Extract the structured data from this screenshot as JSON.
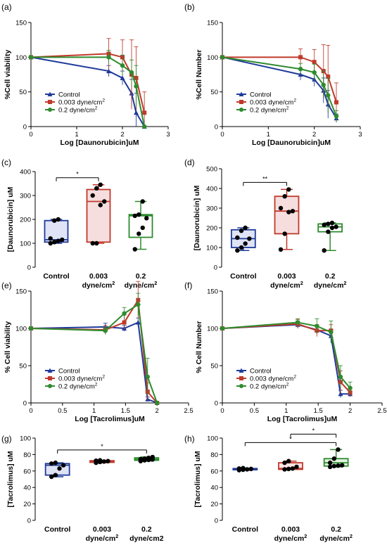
{
  "chart_data": [
    {
      "panel": "(a)",
      "type": "line",
      "xlabel": "Log [Daunorubicin]uM",
      "ylabel": "%Cell viability",
      "xlim": [
        0,
        3
      ],
      "ylim": [
        0,
        150
      ],
      "xticks": [
        0,
        1,
        2,
        3
      ],
      "yticks": [
        0,
        50,
        100,
        150
      ],
      "legend": "bottom-left",
      "series": [
        {
          "name": "Control",
          "color": "#1f3a9a",
          "marker": "triangle",
          "x": [
            0,
            1.7,
            2.0,
            2.2,
            2.3,
            2.48
          ],
          "y": [
            100,
            80,
            70,
            48,
            20,
            0
          ],
          "err": [
            0,
            8,
            10,
            20,
            28,
            0
          ]
        },
        {
          "name": "0.003 dyne/cm²",
          "color": "#c0392b",
          "marker": "square",
          "x": [
            0,
            1.7,
            2.0,
            2.2,
            2.3,
            2.48
          ],
          "y": [
            100,
            105,
            100,
            75,
            70,
            20
          ],
          "err": [
            0,
            22,
            25,
            50,
            45,
            30
          ]
        },
        {
          "name": "0.2 dyne/cm²",
          "color": "#2e8b2e",
          "marker": "circle",
          "x": [
            0,
            1.7,
            2.0,
            2.2,
            2.3,
            2.48
          ],
          "y": [
            100,
            100,
            88,
            78,
            58,
            0
          ],
          "err": [
            0,
            10,
            15,
            18,
            30,
            0
          ]
        }
      ]
    },
    {
      "panel": "(b)",
      "type": "line",
      "xlabel": "Log [Daunorubicin]uM",
      "ylabel": "%Cell Number",
      "xlim": [
        0,
        3
      ],
      "ylim": [
        0,
        150
      ],
      "xticks": [
        0,
        1,
        2,
        3
      ],
      "yticks": [
        0,
        50,
        100,
        150
      ],
      "legend": "bottom-left",
      "series": [
        {
          "name": "Control",
          "color": "#1f3a9a",
          "marker": "triangle",
          "x": [
            0,
            1.7,
            2.0,
            2.2,
            2.3,
            2.48
          ],
          "y": [
            100,
            75,
            68,
            52,
            32,
            12
          ],
          "err": [
            0,
            8,
            10,
            18,
            20,
            6
          ]
        },
        {
          "name": "0.003 dyne/cm²",
          "color": "#c0392b",
          "marker": "square",
          "x": [
            0,
            1.7,
            2.0,
            2.2,
            2.3,
            2.48
          ],
          "y": [
            100,
            100,
            93,
            80,
            72,
            35
          ],
          "err": [
            0,
            12,
            18,
            38,
            45,
            28
          ]
        },
        {
          "name": "0.2 dyne/cm²",
          "color": "#2e8b2e",
          "marker": "circle",
          "x": [
            0,
            1.7,
            2.0,
            2.2,
            2.3,
            2.48
          ],
          "y": [
            100,
            83,
            78,
            60,
            45,
            15
          ],
          "err": [
            0,
            8,
            12,
            20,
            25,
            8
          ]
        }
      ]
    },
    {
      "panel": "(c)",
      "type": "box",
      "ylabel": "[Daunorubicin] uM",
      "ylim": [
        0,
        400
      ],
      "yticks": [
        0,
        100,
        200,
        300,
        400
      ],
      "categories": [
        [
          "Control"
        ],
        [
          "0.003",
          "dyne/cm²"
        ],
        [
          "0.2",
          "dyne/cm²"
        ]
      ],
      "significance": [
        {
          "from": 0,
          "to": 1,
          "label": "*"
        }
      ],
      "boxes": [
        {
          "color": "#1f3a9a",
          "fill": "#dfe3f5",
          "min": 100,
          "q1": 105,
          "median": 115,
          "q3": 195,
          "max": 200,
          "points": [
            100,
            105,
            110,
            115,
            120,
            195,
            200
          ]
        },
        {
          "color": "#c0392b",
          "fill": "#f6dede",
          "min": 100,
          "q1": 105,
          "median": 275,
          "q3": 325,
          "max": 345,
          "points": [
            100,
            100,
            260,
            275,
            300,
            330,
            345
          ]
        },
        {
          "color": "#2e8b2e",
          "fill": "#ffffff",
          "min": 75,
          "q1": 125,
          "median": 215,
          "q3": 220,
          "max": 275,
          "points": [
            75,
            140,
            165,
            205,
            215,
            220,
            275
          ]
        }
      ]
    },
    {
      "panel": "(d)",
      "type": "box",
      "ylabel": "[Daunorubicin] uM",
      "ylim": [
        0,
        500
      ],
      "yticks": [
        0,
        100,
        200,
        300,
        400,
        500
      ],
      "categories": [
        [
          "Control"
        ],
        [
          "0.003",
          "dyne/cm²"
        ],
        [
          "0.2",
          "dyne/cm²"
        ]
      ],
      "significance": [
        {
          "from": 0,
          "to": 1,
          "label": "**"
        }
      ],
      "boxes": [
        {
          "color": "#1f3a9a",
          "fill": "#dfe3f5",
          "min": 85,
          "q1": 100,
          "median": 145,
          "q3": 190,
          "max": 200,
          "points": [
            85,
            100,
            120,
            145,
            150,
            185,
            200
          ]
        },
        {
          "color": "#c0392b",
          "fill": "#f6dede",
          "min": 90,
          "q1": 170,
          "median": 285,
          "q3": 360,
          "max": 395,
          "points": [
            90,
            170,
            280,
            285,
            300,
            360,
            395
          ]
        },
        {
          "color": "#2e8b2e",
          "fill": "#ffffff",
          "min": 85,
          "q1": 180,
          "median": 205,
          "q3": 220,
          "max": 225,
          "points": [
            85,
            180,
            200,
            205,
            215,
            220,
            225
          ]
        }
      ]
    },
    {
      "panel": "(e)",
      "type": "line",
      "xlabel": "Log [Tacrolimus]uM",
      "ylabel": "% Cell viability",
      "xlim": [
        0,
        2.5
      ],
      "ylim": [
        0,
        150
      ],
      "xticks": [
        0,
        0.5,
        1,
        1.5,
        2,
        2.5
      ],
      "yticks": [
        0,
        50,
        100,
        150
      ],
      "legend": "bottom-left",
      "series": [
        {
          "name": "Control",
          "color": "#1f3a9a",
          "marker": "triangle",
          "x": [
            0,
            1.18,
            1.48,
            1.7,
            1.85,
            2.0
          ],
          "y": [
            100,
            102,
            100,
            108,
            5,
            0
          ],
          "err": [
            0,
            5,
            4,
            6,
            3,
            0
          ]
        },
        {
          "name": "0.003 dyne/cm²",
          "color": "#c0392b",
          "marker": "square",
          "x": [
            0,
            1.18,
            1.48,
            1.7,
            1.85,
            2.0
          ],
          "y": [
            100,
            98,
            108,
            138,
            15,
            0
          ],
          "err": [
            0,
            6,
            10,
            25,
            12,
            0
          ]
        },
        {
          "name": "0.2 dyne/cm²",
          "color": "#2e8b2e",
          "marker": "circle",
          "x": [
            0,
            1.18,
            1.48,
            1.7,
            1.85,
            2.0
          ],
          "y": [
            100,
            97,
            120,
            132,
            35,
            0
          ],
          "err": [
            0,
            5,
            8,
            15,
            25,
            0
          ]
        }
      ]
    },
    {
      "panel": "(f)",
      "type": "line",
      "xlabel": "Log [Tacrolimus]uM",
      "ylabel": "% Cell Number",
      "xlim": [
        0,
        2.5
      ],
      "ylim": [
        0,
        150
      ],
      "xticks": [
        0,
        0.5,
        1,
        1.5,
        2,
        2.5
      ],
      "yticks": [
        0,
        50,
        100,
        150
      ],
      "legend": "bottom-left",
      "series": [
        {
          "name": "Control",
          "color": "#1f3a9a",
          "marker": "triangle",
          "x": [
            0,
            1.18,
            1.48,
            1.7,
            1.85,
            2.0
          ],
          "y": [
            100,
            105,
            98,
            90,
            12,
            12
          ],
          "err": [
            0,
            5,
            6,
            8,
            5,
            4
          ]
        },
        {
          "name": "0.003 dyne/cm²",
          "color": "#c0392b",
          "marker": "square",
          "x": [
            0,
            1.18,
            1.48,
            1.7,
            1.85,
            2.0
          ],
          "y": [
            100,
            106,
            97,
            97,
            28,
            14
          ],
          "err": [
            0,
            6,
            8,
            8,
            15,
            6
          ]
        },
        {
          "name": "0.2 dyne/cm²",
          "color": "#2e8b2e",
          "marker": "circle",
          "x": [
            0,
            1.18,
            1.48,
            1.7,
            1.85,
            2.0
          ],
          "y": [
            100,
            108,
            103,
            95,
            35,
            20
          ],
          "err": [
            0,
            5,
            10,
            15,
            15,
            8
          ]
        }
      ]
    },
    {
      "panel": "(g)",
      "type": "box",
      "ylabel": "[Tacrolimus] uM",
      "ylim": [
        0,
        100
      ],
      "yticks": [
        0,
        20,
        40,
        60,
        80,
        100
      ],
      "categories": [
        [
          "Control"
        ],
        [
          "0.003",
          "dyne/cm²"
        ],
        [
          "0.2",
          "dyne/cm2"
        ]
      ],
      "significance": [
        {
          "from": 0,
          "to": 2,
          "label": "*"
        }
      ],
      "boxes": [
        {
          "color": "#1f3a9a",
          "fill": "#dfe3f5",
          "min": 53,
          "q1": 55,
          "median": 67,
          "q3": 69,
          "max": 70,
          "points": [
            53,
            55,
            63,
            67,
            69,
            70
          ]
        },
        {
          "color": "#c0392b",
          "fill": "#f26b5b",
          "min": 70,
          "q1": 70.5,
          "median": 71.5,
          "q3": 72.5,
          "max": 73,
          "points": [
            70,
            71,
            71.5,
            72,
            72.5,
            73
          ]
        },
        {
          "color": "#2e8b2e",
          "fill": "#4ccc5a",
          "min": 72,
          "q1": 73,
          "median": 74,
          "q3": 76,
          "max": 77,
          "points": [
            72,
            73,
            73.5,
            74,
            74.5,
            75,
            76,
            77
          ]
        }
      ]
    },
    {
      "panel": "(h)",
      "type": "box",
      "ylabel": "[Tacrolimus] uM",
      "ylim": [
        0,
        100
      ],
      "yticks": [
        0,
        20,
        40,
        60,
        80,
        100
      ],
      "categories": [
        [
          "Control"
        ],
        [
          "0.003",
          "dyne/cm²"
        ],
        [
          "0.2",
          "dyne/cm²"
        ]
      ],
      "significance": [
        {
          "from": 0,
          "to": 2,
          "label": "*"
        },
        {
          "from": 1,
          "to": 2,
          "label": "*"
        }
      ],
      "boxes": [
        {
          "color": "#1f3a9a",
          "fill": "#dfe3f5",
          "min": 61,
          "q1": 61.5,
          "median": 62,
          "q3": 63,
          "max": 63.5,
          "points": [
            61,
            61.5,
            62,
            62.5,
            63,
            63.5
          ]
        },
        {
          "color": "#c0392b",
          "fill": "#fbe4e2",
          "min": 62,
          "q1": 62,
          "median": 63,
          "q3": 70,
          "max": 72,
          "points": [
            62,
            62.5,
            63,
            65,
            70,
            72
          ]
        },
        {
          "color": "#2e8b2e",
          "fill": "#e2f5e2",
          "min": 65,
          "q1": 66,
          "median": 70,
          "q3": 75,
          "max": 86,
          "points": [
            65,
            66,
            66.5,
            67,
            70,
            75,
            86
          ]
        }
      ]
    }
  ]
}
